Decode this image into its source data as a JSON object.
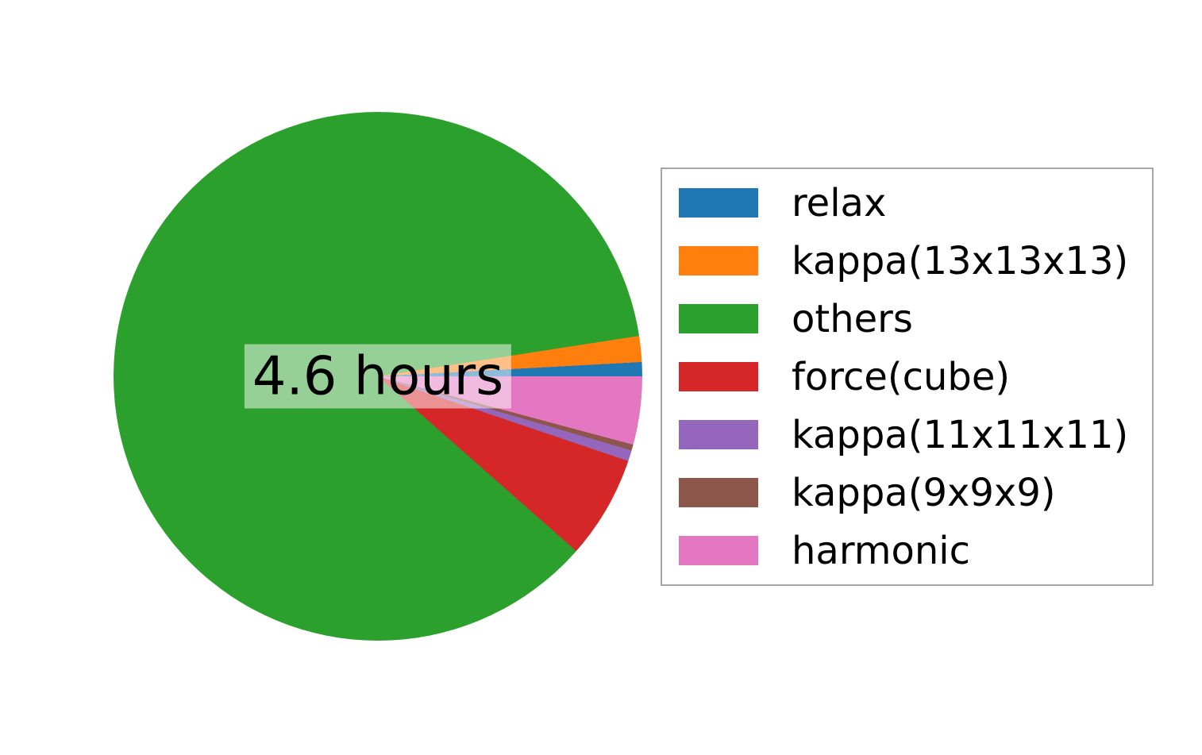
{
  "chart_data": {
    "type": "pie",
    "center_label": "4.6 hours",
    "total_label": "4.6 hours",
    "start_angle_deg": 0,
    "direction": "counterclockwise",
    "legend_position": "right",
    "center_label_background": "rgba(255,255,255,0.5)",
    "slices": [
      {
        "label": "relax",
        "color": "#1f77b4",
        "angle_deg": 3.1,
        "percent": 0.9
      },
      {
        "label": "kappa(13x13x13)",
        "color": "#ff7f0e",
        "angle_deg": 5.7,
        "percent": 1.6
      },
      {
        "label": "others",
        "color": "#2ca02c",
        "angle_deg": 309.8,
        "percent": 86.1
      },
      {
        "label": "force(cube)",
        "color": "#d62728",
        "angle_deg": 22.7,
        "percent": 6.3
      },
      {
        "label": "kappa(11x11x11)",
        "color": "#9467bd",
        "angle_deg": 2.4,
        "percent": 0.7
      },
      {
        "label": "kappa(9x9x9)",
        "color": "#8c564b",
        "angle_deg": 1.3,
        "percent": 0.4
      },
      {
        "label": "harmonic",
        "color": "#e377c2",
        "angle_deg": 15.0,
        "percent": 4.2
      }
    ]
  }
}
